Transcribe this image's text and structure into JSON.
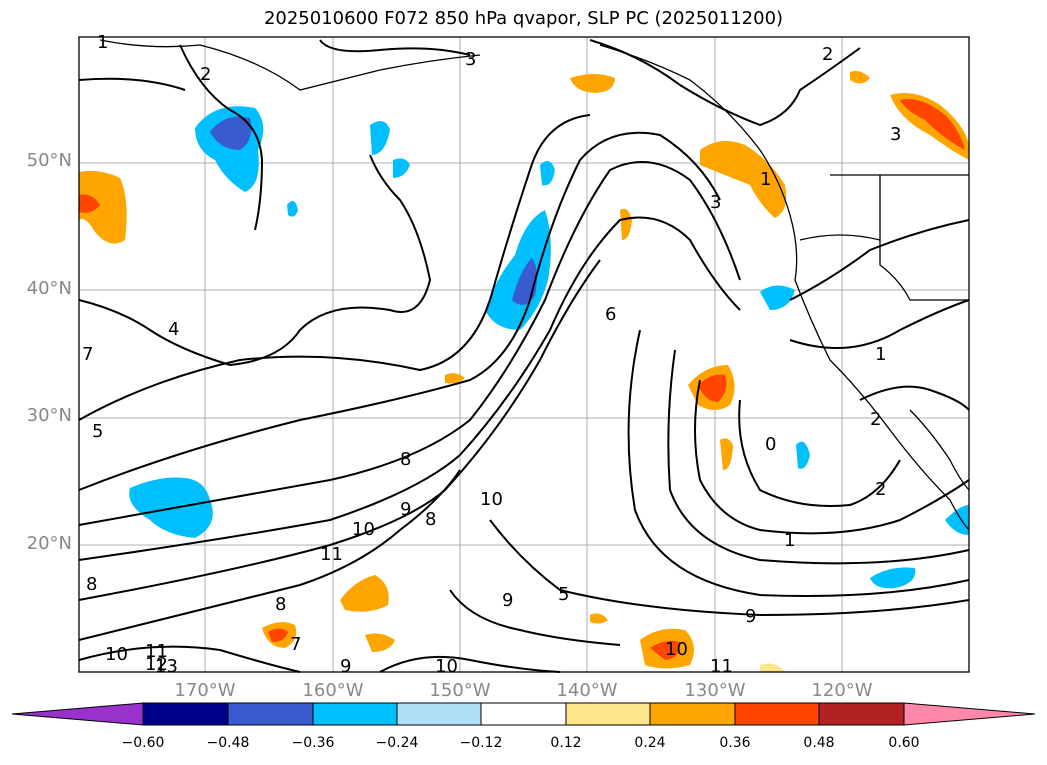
{
  "title": "2025010600 F072 850 hPa qvapor, SLP PC (2025011200)",
  "map": {
    "lat_labels": [
      "50°N",
      "40°N",
      "30°N",
      "20°N"
    ],
    "lon_labels": [
      "170°W",
      "160°W",
      "150°W",
      "140°W",
      "130°W",
      "120°W"
    ],
    "contour_labels": [
      "1",
      "2",
      "3",
      "2",
      "3",
      "3",
      "4",
      "1",
      "2",
      "5",
      "7",
      "8",
      "9",
      "10",
      "11",
      "10",
      "8",
      "1",
      "0",
      "1",
      "2",
      "6",
      "8",
      "10",
      "9",
      "5",
      "9",
      "10",
      "11",
      "12",
      "13",
      "7",
      "8",
      "9",
      "10",
      "11"
    ]
  },
  "colorbar": {
    "ticks": [
      "−0.60",
      "−0.48",
      "−0.36",
      "−0.24",
      "−0.12",
      "0.12",
      "0.24",
      "0.36",
      "0.48",
      "0.60"
    ],
    "colors": [
      "#9932cc",
      "#00008b",
      "#3a5bd0",
      "#00bfff",
      "#aee0f7",
      "#ffffff",
      "#ffe68a",
      "#ffa500",
      "#ff4500",
      "#b22222",
      "#ff88aa"
    ]
  }
}
